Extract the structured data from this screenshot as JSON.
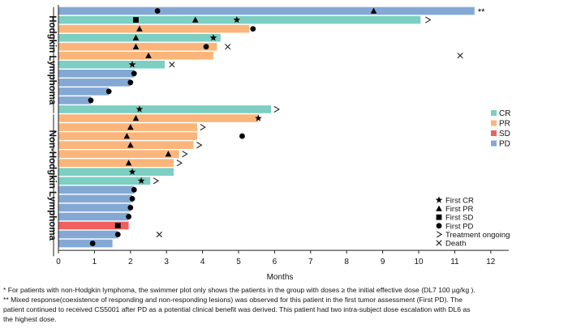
{
  "chart_data": {
    "type": "swimmer",
    "xlabel": "Months",
    "xlim": [
      0,
      12.5
    ],
    "xticks": [
      0,
      1,
      2,
      3,
      4,
      5,
      6,
      7,
      8,
      9,
      10,
      11,
      12
    ],
    "groups": [
      {
        "label": "Hodgkin Lymphoma",
        "start": 0,
        "end": 11
      },
      {
        "label": "Non-Hodgkin Lymphoma",
        "start": 12,
        "end": 27
      }
    ],
    "legend_response": [
      {
        "label": "CR",
        "color": "#7ccfc2"
      },
      {
        "label": "PR",
        "color": "#fbb57a"
      },
      {
        "label": "SD",
        "color": "#f0605d"
      },
      {
        "label": "PD",
        "color": "#84a8d4"
      }
    ],
    "legend_events": [
      {
        "label": "First CR",
        "marker": "star"
      },
      {
        "label": "First PR",
        "marker": "triangle"
      },
      {
        "label": "First SD",
        "marker": "square"
      },
      {
        "label": "First PD",
        "marker": "circle"
      },
      {
        "label": "Treatment ongoing",
        "marker": "chevron"
      },
      {
        "label": "Death",
        "marker": "x"
      }
    ],
    "patients": [
      {
        "duration": 11.55,
        "response": "PD",
        "events": [
          {
            "t": 2.75,
            "type": "circle"
          },
          {
            "t": 8.75,
            "type": "triangle"
          }
        ],
        "note": "**"
      },
      {
        "duration": 10.05,
        "response": "CR",
        "events": [
          {
            "t": 2.15,
            "type": "square"
          },
          {
            "t": 3.8,
            "type": "triangle"
          },
          {
            "t": 4.95,
            "type": "star"
          },
          {
            "t": 10.25,
            "type": "chevron"
          }
        ]
      },
      {
        "duration": 5.3,
        "response": "PR",
        "events": [
          {
            "t": 2.25,
            "type": "triangle"
          },
          {
            "t": 5.4,
            "type": "circle"
          }
        ]
      },
      {
        "duration": 4.5,
        "response": "CR",
        "events": [
          {
            "t": 2.15,
            "type": "triangle"
          },
          {
            "t": 4.3,
            "type": "star"
          }
        ]
      },
      {
        "duration": 4.4,
        "response": "PR",
        "events": [
          {
            "t": 2.15,
            "type": "triangle"
          },
          {
            "t": 4.1,
            "type": "circle"
          },
          {
            "t": 4.7,
            "type": "x"
          }
        ]
      },
      {
        "duration": 4.3,
        "response": "PR",
        "events": [
          {
            "t": 2.5,
            "type": "triangle"
          },
          {
            "t": 11.15,
            "type": "x"
          }
        ]
      },
      {
        "duration": 2.95,
        "response": "CR",
        "events": [
          {
            "t": 2.05,
            "type": "star"
          },
          {
            "t": 3.15,
            "type": "x"
          }
        ]
      },
      {
        "duration": 2.1,
        "response": "PD",
        "events": [
          {
            "t": 2.1,
            "type": "circle"
          }
        ]
      },
      {
        "duration": 2.0,
        "response": "PD",
        "events": [
          {
            "t": 2.0,
            "type": "circle"
          }
        ]
      },
      {
        "duration": 1.4,
        "response": "PD",
        "events": [
          {
            "t": 1.4,
            "type": "circle"
          }
        ]
      },
      {
        "duration": 0.9,
        "response": "PD",
        "events": [
          {
            "t": 0.9,
            "type": "circle"
          }
        ]
      },
      {
        "duration": 5.9,
        "response": "CR",
        "events": [
          {
            "t": 2.25,
            "type": "star"
          },
          {
            "t": 6.05,
            "type": "chevron"
          }
        ]
      },
      {
        "duration": 5.55,
        "response": "PR",
        "events": [
          {
            "t": 2.15,
            "type": "triangle"
          },
          {
            "t": 5.55,
            "type": "star"
          }
        ]
      },
      {
        "duration": 3.85,
        "response": "PR",
        "events": [
          {
            "t": 2.0,
            "type": "triangle"
          },
          {
            "t": 4.0,
            "type": "chevron"
          }
        ]
      },
      {
        "duration": 3.85,
        "response": "PR",
        "events": [
          {
            "t": 1.9,
            "type": "triangle"
          },
          {
            "t": 5.1,
            "type": "circle"
          }
        ]
      },
      {
        "duration": 3.75,
        "response": "PR",
        "events": [
          {
            "t": 2.0,
            "type": "triangle"
          },
          {
            "t": 3.9,
            "type": "chevron"
          }
        ]
      },
      {
        "duration": 3.35,
        "response": "PR",
        "events": [
          {
            "t": 3.05,
            "type": "triangle"
          },
          {
            "t": 3.5,
            "type": "chevron"
          }
        ]
      },
      {
        "duration": 3.2,
        "response": "PR",
        "events": [
          {
            "t": 1.95,
            "type": "triangle"
          },
          {
            "t": 3.35,
            "type": "chevron"
          }
        ]
      },
      {
        "duration": 3.2,
        "response": "CR",
        "events": [
          {
            "t": 2.05,
            "type": "star"
          }
        ]
      },
      {
        "duration": 2.55,
        "response": "CR",
        "events": [
          {
            "t": 2.3,
            "type": "star"
          },
          {
            "t": 2.7,
            "type": "chevron"
          }
        ]
      },
      {
        "duration": 2.1,
        "response": "PD",
        "events": [
          {
            "t": 2.1,
            "type": "circle"
          }
        ]
      },
      {
        "duration": 2.05,
        "response": "PD",
        "events": [
          {
            "t": 2.05,
            "type": "circle"
          }
        ]
      },
      {
        "duration": 2.0,
        "response": "PD",
        "events": [
          {
            "t": 2.0,
            "type": "circle"
          }
        ]
      },
      {
        "duration": 1.95,
        "response": "PD",
        "events": [
          {
            "t": 1.95,
            "type": "circle"
          }
        ]
      },
      {
        "duration": 1.95,
        "response": "SD",
        "events": [
          {
            "t": 1.65,
            "type": "square"
          }
        ]
      },
      {
        "duration": 1.65,
        "response": "PD",
        "events": [
          {
            "t": 1.65,
            "type": "circle"
          },
          {
            "t": 2.8,
            "type": "x"
          }
        ]
      },
      {
        "duration": 1.5,
        "response": "PD",
        "events": [
          {
            "t": 0.95,
            "type": "circle"
          }
        ]
      }
    ]
  },
  "footnotes": {
    "line1": "* For patients with non-Hodgkin lymphoma, the swimmer plot only shows the patients in the group with doses ≥ the initial effective dose (DL7 100 µg/kg ).",
    "line2": "** Mixed response(coexistence of responding and non-responding lesions) was observed for this patient in the first tumor assessment (First PD). The",
    "line3": "patient continued to received CS5001 after PD as a potential clinical benefit was derived. This patient had two intra-subject dose escalation with DL6 as",
    "line4": "the highest dose."
  }
}
